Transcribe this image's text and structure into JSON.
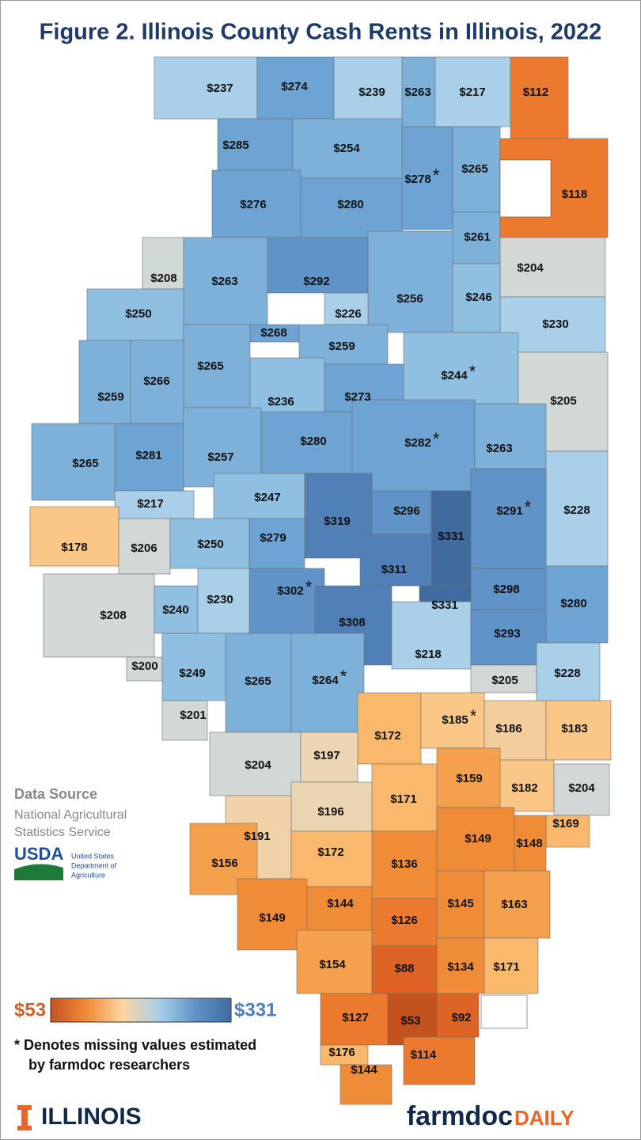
{
  "title": "Figure 2. Illinois County Cash Rents in Illinois, 2022",
  "counties": [
    {
      "value": 237,
      "label": "$237",
      "color": "#a9d0e8"
    },
    {
      "value": 274,
      "label": "$274",
      "color": "#6ea4d3"
    },
    {
      "value": 239,
      "label": "$239",
      "color": "#a9d0e8"
    },
    {
      "value": 263,
      "label": "$263",
      "color": "#7db1da"
    },
    {
      "value": 217,
      "label": "$217",
      "color": "#a9d0e8"
    },
    {
      "value": 112,
      "label": "$112",
      "color": "#ec7a2e"
    },
    {
      "value": 285,
      "label": "$285",
      "color": "#6ea4d3"
    },
    {
      "value": 254,
      "label": "$254",
      "color": "#7db1da"
    },
    {
      "value": 278,
      "label": "$278",
      "note": "*",
      "color": "#6ea4d3"
    },
    {
      "value": 265,
      "label": "$265",
      "color": "#7db1da"
    },
    {
      "value": 118,
      "label": "$118",
      "color": "#ec7a2e"
    },
    {
      "value": 276,
      "label": "$276",
      "color": "#6ea4d3"
    },
    {
      "value": 280,
      "label": "$280",
      "color": "#6ea4d3"
    },
    {
      "value": 261,
      "label": "$261",
      "color": "#7db1da"
    },
    {
      "value": 204,
      "label": "$204",
      "color": "#d2d8d6"
    },
    {
      "value": 208,
      "label": "$208",
      "color": "#d2d8d6"
    },
    {
      "value": 263,
      "label": "$263",
      "color": "#7db1da"
    },
    {
      "value": 292,
      "label": "$292",
      "color": "#6093c7"
    },
    {
      "value": 256,
      "label": "$256",
      "color": "#7db1da"
    },
    {
      "value": 246,
      "label": "$246",
      "color": "#8fbfe1"
    },
    {
      "value": 230,
      "label": "$230",
      "color": "#a9d0e8"
    },
    {
      "value": 250,
      "label": "$250",
      "color": "#8fbfe1"
    },
    {
      "value": 226,
      "label": "$226",
      "color": "#a9d0e8"
    },
    {
      "value": 268,
      "label": "$268",
      "color": "#6ea4d3"
    },
    {
      "value": 259,
      "label": "$259",
      "color": "#7db1da"
    },
    {
      "value": 265,
      "label": "$265",
      "color": "#7db1da"
    },
    {
      "value": 259,
      "label": "$259",
      "color": "#7db1da"
    },
    {
      "value": 266,
      "label": "$266",
      "color": "#7db1da"
    },
    {
      "value": 236,
      "label": "$236",
      "color": "#8fbfe1"
    },
    {
      "value": 273,
      "label": "$273",
      "color": "#6ea4d3"
    },
    {
      "value": 244,
      "label": "$244",
      "note": "*",
      "color": "#8fbfe1"
    },
    {
      "value": 205,
      "label": "$205",
      "color": "#d2d8d6"
    },
    {
      "value": 265,
      "label": "$265",
      "color": "#7db1da"
    },
    {
      "value": 281,
      "label": "$281",
      "color": "#6ea4d3"
    },
    {
      "value": 257,
      "label": "$257",
      "color": "#7db1da"
    },
    {
      "value": 280,
      "label": "$280",
      "color": "#6ea4d3"
    },
    {
      "value": 282,
      "label": "$282",
      "note": "*",
      "color": "#6ea4d3"
    },
    {
      "value": 263,
      "label": "$263",
      "color": "#7db1da"
    },
    {
      "value": 217,
      "label": "$217",
      "color": "#a9d0e8"
    },
    {
      "value": 247,
      "label": "$247",
      "color": "#8fbfe1"
    },
    {
      "value": 228,
      "label": "$228",
      "color": "#a9d0e8"
    },
    {
      "value": 178,
      "label": "$178",
      "color": "#fbc786"
    },
    {
      "value": 206,
      "label": "$206",
      "color": "#d2d8d6"
    },
    {
      "value": 319,
      "label": "$319",
      "color": "#5080b7"
    },
    {
      "value": 296,
      "label": "$296",
      "color": "#6093c7"
    },
    {
      "value": 331,
      "label": "$331",
      "color": "#3f6b9f"
    },
    {
      "value": 291,
      "label": "$291",
      "note": "*",
      "color": "#6093c7"
    },
    {
      "value": 250,
      "label": "$250",
      "color": "#8fbfe1"
    },
    {
      "value": 279,
      "label": "$279",
      "color": "#6ea4d3"
    },
    {
      "value": 311,
      "label": "$311",
      "color": "#5080b7"
    },
    {
      "value": 302,
      "label": "$302",
      "note": "*",
      "color": "#6093c7"
    },
    {
      "value": 208,
      "label": "$208",
      "color": "#d2d8d6"
    },
    {
      "value": 240,
      "label": "$240",
      "color": "#8fbfe1"
    },
    {
      "value": 230,
      "label": "$230",
      "color": "#a9d0e8"
    },
    {
      "value": 298,
      "label": "$298",
      "color": "#6093c7"
    },
    {
      "value": 280,
      "label": "$280",
      "color": "#6ea4d3"
    },
    {
      "value": 331,
      "label": "$331",
      "color": "#3f6b9f"
    },
    {
      "value": 308,
      "label": "$308",
      "color": "#5080b7"
    },
    {
      "value": 218,
      "label": "$218",
      "color": "#a9d0e8"
    },
    {
      "value": 293,
      "label": "$293",
      "color": "#6093c7"
    },
    {
      "value": 200,
      "label": "$200",
      "color": "#d2d8d6"
    },
    {
      "value": 249,
      "label": "$249",
      "color": "#8fbfe1"
    },
    {
      "value": 265,
      "label": "$265",
      "color": "#7db1da"
    },
    {
      "value": 264,
      "label": "$264",
      "note": "*",
      "color": "#7db1da"
    },
    {
      "value": 205,
      "label": "$205",
      "color": "#d2d8d6"
    },
    {
      "value": 228,
      "label": "$228",
      "color": "#a9d0e8"
    },
    {
      "value": 201,
      "label": "$201",
      "color": "#d2d8d6"
    },
    {
      "value": 172,
      "label": "$172",
      "color": "#f9b86b"
    },
    {
      "value": 185,
      "label": "$185",
      "note": "*",
      "color": "#fbc786"
    },
    {
      "value": 186,
      "label": "$186",
      "color": "#f4cd9c"
    },
    {
      "value": 183,
      "label": "$183",
      "color": "#fbc786"
    },
    {
      "value": 204,
      "label": "$204",
      "color": "#d2d8d6"
    },
    {
      "value": 197,
      "label": "$197",
      "color": "#ecd5b3"
    },
    {
      "value": 159,
      "label": "$159",
      "color": "#f5a04c"
    },
    {
      "value": 182,
      "label": "$182",
      "color": "#fbc786"
    },
    {
      "value": 204,
      "label": "$204",
      "color": "#d2d8d6"
    },
    {
      "value": 171,
      "label": "$171",
      "color": "#f9b86b"
    },
    {
      "value": 196,
      "label": "$196",
      "color": "#ecd5b3"
    },
    {
      "value": 191,
      "label": "$191",
      "color": "#f0d1a8"
    },
    {
      "value": 169,
      "label": "$169",
      "color": "#f9b86b"
    },
    {
      "value": 149,
      "label": "$149",
      "color": "#f08c38"
    },
    {
      "value": 148,
      "label": "$148",
      "color": "#f08c38"
    },
    {
      "value": 136,
      "label": "$136",
      "color": "#f08c38"
    },
    {
      "value": 172,
      "label": "$172",
      "color": "#f9b86b"
    },
    {
      "value": 156,
      "label": "$156",
      "color": "#f5a04c"
    },
    {
      "value": 144,
      "label": "$144",
      "color": "#f08c38"
    },
    {
      "value": 149,
      "label": "$149",
      "color": "#f08c38"
    },
    {
      "value": 145,
      "label": "$145",
      "color": "#f08c38"
    },
    {
      "value": 163,
      "label": "$163",
      "color": "#f5a04c"
    },
    {
      "value": 126,
      "label": "$126",
      "color": "#ec7a2e"
    },
    {
      "value": 154,
      "label": "$154",
      "color": "#f5a04c"
    },
    {
      "value": 88,
      "label": "$88",
      "color": "#de6426"
    },
    {
      "value": 134,
      "label": "$134",
      "color": "#f08c38"
    },
    {
      "value": 171,
      "label": "$171",
      "color": "#f9b86b"
    },
    {
      "value": 127,
      "label": "$127",
      "color": "#ec7a2e"
    },
    {
      "value": 53,
      "label": "$53",
      "color": "#c4521f"
    },
    {
      "value": 92,
      "label": "$92",
      "color": "#de6426"
    },
    {
      "value": 114,
      "label": "$114",
      "color": "#ec7a2e"
    },
    {
      "value": 176,
      "label": "$176",
      "color": "#f9b86b"
    },
    {
      "value": 144,
      "label": "$144",
      "color": "#f08c38"
    }
  ],
  "legend": {
    "min": {
      "value": 53,
      "label": "$53",
      "color": "#d0602a"
    },
    "max": {
      "value": 331,
      "label": "$331",
      "color": "#4f7fb6"
    },
    "colors": [
      "#c4521f",
      "#f08c38",
      "#fbd5a0",
      "#a9d0e8",
      "#6093c7",
      "#3f6b9f"
    ]
  },
  "footnote": [
    "* Denotes missing values estimated",
    "by farmdoc researchers"
  ],
  "source": {
    "heading": "Data Source",
    "lines": [
      "National Agricultural",
      "Statistics Service"
    ],
    "usda": "USDA",
    "usda_lines": [
      "United States",
      "Department of",
      "Agriculture"
    ]
  },
  "brand_left": "ILLINOIS",
  "brand_right": {
    "main": "farmdoc",
    "accent": "DAILY"
  }
}
